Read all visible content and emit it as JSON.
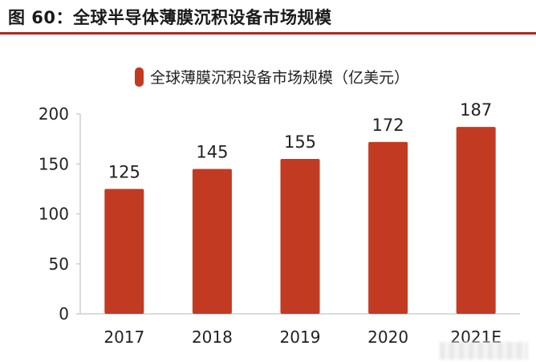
{
  "figure": {
    "title": "图 60：全球半导体薄膜沉积设备市场规模"
  },
  "colors": {
    "bar": "#c23a22",
    "title_rule": "#b0281d",
    "axis": "#cfcfcf",
    "text": "#222222"
  },
  "chart_data": {
    "type": "bar",
    "title": "",
    "xlabel": "",
    "ylabel": "",
    "categories": [
      "2017",
      "2018",
      "2019",
      "2020",
      "2021E"
    ],
    "series": [
      {
        "name": "全球薄膜沉积设备市场规模（亿美元）",
        "values": [
          125,
          145,
          155,
          172,
          187
        ]
      }
    ],
    "data_labels": [
      "125",
      "145",
      "155",
      "172",
      "187"
    ],
    "ylim": [
      0,
      200
    ],
    "yticks": [
      0,
      50,
      100,
      150,
      200
    ],
    "grid": false,
    "legend_position": "top"
  }
}
